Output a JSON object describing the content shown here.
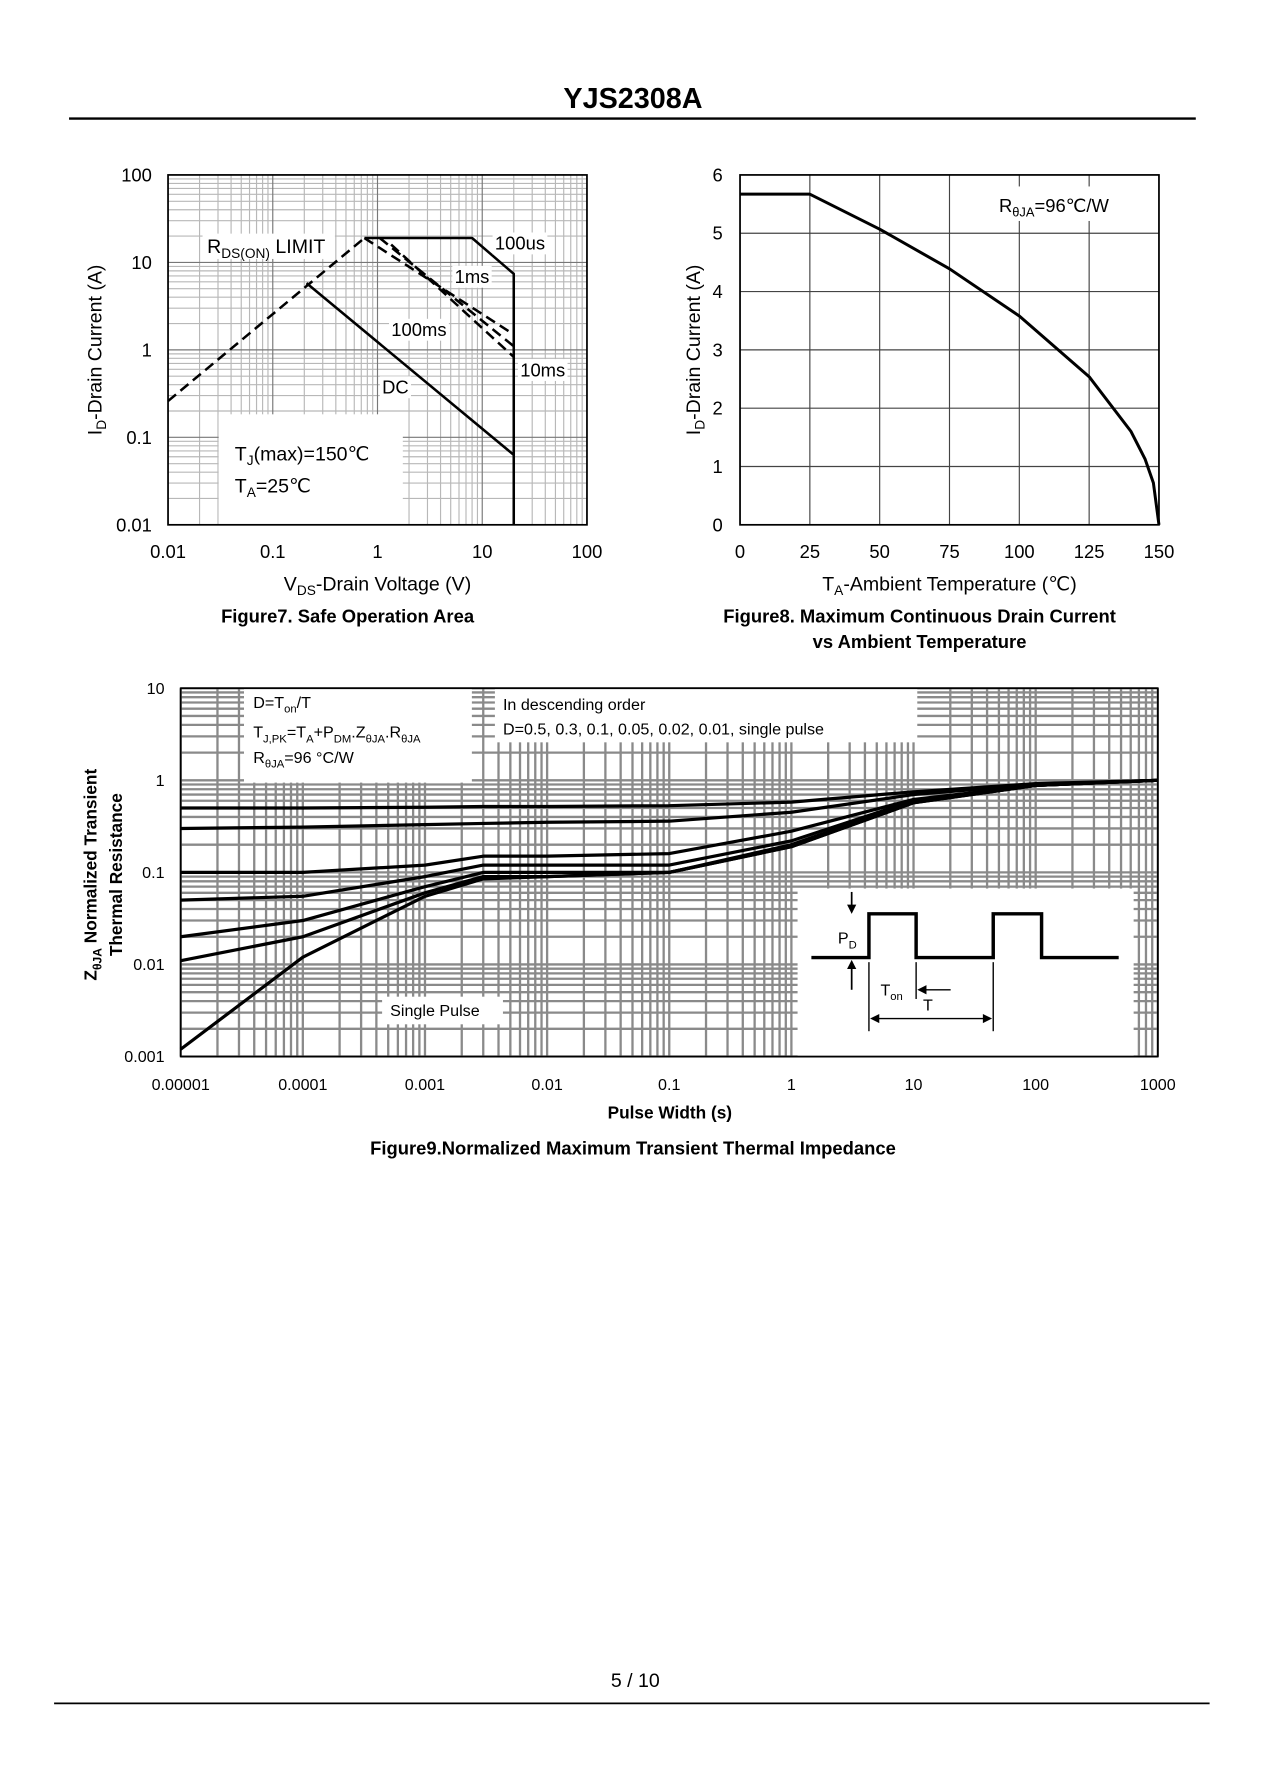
{
  "header": {
    "title": "YJS2308A"
  },
  "chart_data": [
    {
      "type": "line",
      "xscale": "log",
      "yscale": "log",
      "grid": true,
      "minor_grid": true,
      "title": "Figure7. Safe Operation Area",
      "xlabel": [
        "V",
        "DS",
        "-Drain Voltage (V)"
      ],
      "ylabel": [
        "I",
        "D",
        "-Drain Current (A)"
      ],
      "xlim": [
        0.01,
        100
      ],
      "ylim": [
        0.01,
        100
      ],
      "xticks": [
        0.01,
        0.1,
        1,
        10,
        100
      ],
      "yticks": [
        0.01,
        0.1,
        1,
        10,
        100
      ],
      "series": [
        {
          "name": "100us",
          "color": "#000000",
          "dashed": false,
          "x": [
            0.75,
            8,
            20,
            20
          ],
          "values": [
            19,
            19,
            7.4,
            0.01
          ]
        },
        {
          "name": "1ms",
          "color": "#000000",
          "dashed": true,
          "x": [
            0.75,
            20
          ],
          "values": [
            19,
            1.5
          ]
        },
        {
          "name": "100ms",
          "color": "#000000",
          "dashed": true,
          "x": [
            1.05,
            20
          ],
          "values": [
            19,
            1.1
          ]
        },
        {
          "name": "10ms",
          "color": "#000000",
          "dashed": true,
          "x": [
            1.35,
            20
          ],
          "values": [
            16,
            0.83
          ]
        },
        {
          "name": "DC",
          "color": "#000000",
          "dashed": false,
          "x": [
            0.21,
            20
          ],
          "values": [
            5.8,
            0.063
          ]
        },
        {
          "color": "#000000",
          "dashed": true,
          "x": [
            0.01,
            0.75
          ],
          "values": [
            0.26,
            19
          ]
        }
      ],
      "annotations": [
        [
          "R",
          "DS(ON)",
          " LIMIT"
        ],
        [
          "T",
          "J",
          "(max)=150℃"
        ],
        [
          "T",
          "A",
          "=25℃"
        ]
      ]
    },
    {
      "type": "line",
      "xscale": "linear",
      "yscale": "linear",
      "grid": true,
      "minor_grid": false,
      "title": [
        "Figure8. Maximum Continuous Drain Current",
        "vs Ambient Temperature"
      ],
      "xlabel": [
        "T",
        "A",
        "-Ambient Temperature (℃)"
      ],
      "ylabel": [
        "I",
        "D",
        "-Drain Current (A)"
      ],
      "xlim": [
        0,
        150
      ],
      "ylim": [
        0,
        6
      ],
      "xticks": [
        0,
        25,
        50,
        75,
        100,
        125,
        150
      ],
      "yticks": [
        0,
        1,
        2,
        3,
        4,
        5,
        6
      ],
      "x": [
        0,
        25,
        50,
        75,
        100,
        125,
        140,
        145,
        148,
        150
      ],
      "series": [
        {
          "color": "#000000",
          "dashed": false,
          "values": [
            5.67,
            5.67,
            5.07,
            4.39,
            3.58,
            2.54,
            1.6,
            1.13,
            0.72,
            0
          ]
        }
      ],
      "annotations": [
        [
          "R",
          "θJA",
          "=96℃/W"
        ]
      ]
    },
    {
      "type": "line",
      "xscale": "log",
      "yscale": "log",
      "grid": true,
      "minor_grid": true,
      "title": "Figure9.Normalized Maximum Transient Thermal Impedance",
      "xlabel": "Pulse Width (s)",
      "ylabel": [
        [
          "Z",
          "θJA",
          " Normalized Transient"
        ],
        [
          "Thermal Resistance"
        ]
      ],
      "xlim": [
        1e-05,
        1000
      ],
      "ylim": [
        0.001,
        10
      ],
      "xticks": [
        1e-05,
        0.0001,
        0.001,
        0.01,
        0.1,
        1,
        10,
        100,
        1000
      ],
      "yticks": [
        0.001,
        0.01,
        0.1,
        1,
        10
      ],
      "x": [
        1e-05,
        0.0001,
        0.001,
        0.003,
        0.01,
        0.1,
        1,
        10,
        100,
        1000
      ],
      "series": [
        {
          "color": "#000000",
          "dashed": false,
          "values": [
            0.5,
            0.5,
            0.51,
            0.52,
            0.52,
            0.53,
            0.58,
            0.75,
            0.92,
            1
          ]
        },
        {
          "color": "#000000",
          "dashed": false,
          "values": [
            0.3,
            0.31,
            0.33,
            0.34,
            0.35,
            0.36,
            0.45,
            0.7,
            0.9,
            1
          ]
        },
        {
          "color": "#000000",
          "dashed": false,
          "values": [
            0.1,
            0.1,
            0.12,
            0.15,
            0.15,
            0.16,
            0.28,
            0.62,
            0.88,
            1
          ]
        },
        {
          "color": "#000000",
          "dashed": false,
          "values": [
            0.05,
            0.055,
            0.09,
            0.12,
            0.12,
            0.12,
            0.22,
            0.6,
            0.88,
            1
          ]
        },
        {
          "color": "#000000",
          "dashed": false,
          "values": [
            0.02,
            0.03,
            0.07,
            0.1,
            0.1,
            0.1,
            0.2,
            0.58,
            0.88,
            1
          ]
        },
        {
          "color": "#000000",
          "dashed": false,
          "values": [
            0.011,
            0.02,
            0.06,
            0.09,
            0.09,
            0.1,
            0.19,
            0.57,
            0.88,
            1
          ]
        },
        {
          "color": "#000000",
          "dashed": false,
          "values": [
            0.0012,
            0.012,
            0.055,
            0.085,
            0.09,
            0.1,
            0.19,
            0.57,
            0.88,
            1
          ]
        }
      ],
      "annotations": [
        [
          "D=T",
          "on",
          "/T"
        ],
        [
          "T",
          "J,PK",
          "=T",
          "A",
          "+P",
          "DM",
          ".Z",
          "θJA",
          ".R",
          "θJA"
        ],
        [
          "R",
          "θJA",
          "=96 °C/W"
        ],
        "In descending order",
        "D=0.5, 0.3, 0.1, 0.05, 0.02, 0.01, single pulse",
        "Single Pulse",
        [
          "P",
          "D"
        ],
        [
          "T",
          "on"
        ],
        "T"
      ]
    }
  ],
  "footer": {
    "page": "5 / 10"
  }
}
